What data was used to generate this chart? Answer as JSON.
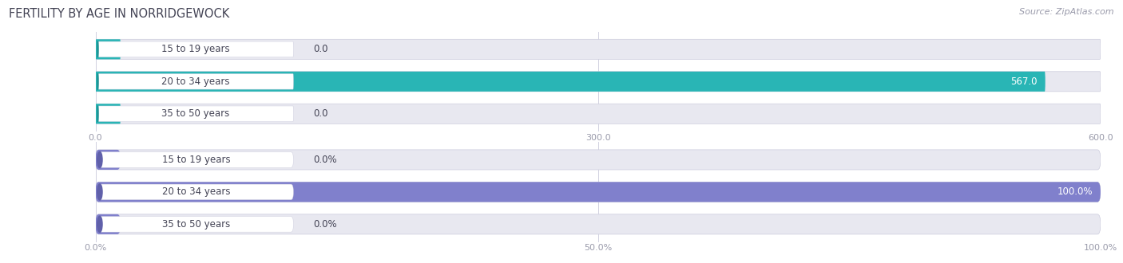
{
  "title": "FERTILITY BY AGE IN NORRIDGEWOCK",
  "source": "Source: ZipAtlas.com",
  "categories": [
    "15 to 19 years",
    "20 to 34 years",
    "35 to 50 years"
  ],
  "values_count": [
    0.0,
    567.0,
    0.0
  ],
  "values_pct": [
    0.0,
    100.0,
    0.0
  ],
  "max_count": 600.0,
  "max_pct": 100.0,
  "count_ticks": [
    0.0,
    300.0,
    600.0
  ],
  "pct_ticks": [
    0.0,
    50.0,
    100.0
  ],
  "pct_tick_labels": [
    "0.0%",
    "50.0%",
    "100.0%"
  ],
  "bar_color_count": "#29b5b5",
  "bar_color_count_dark": "#1a9090",
  "bar_color_pct": "#8080cc",
  "bar_color_pct_dark": "#6060aa",
  "bar_bg_color": "#e8e8f0",
  "label_color": "#444455",
  "title_color": "#444455",
  "source_color": "#999aaa",
  "tick_color": "#999aaa",
  "gridline_color": "#d0d0e0",
  "pill_bg": "#ffffff",
  "title_fontsize": 10.5,
  "label_fontsize": 8.5,
  "tick_fontsize": 8,
  "source_fontsize": 8
}
